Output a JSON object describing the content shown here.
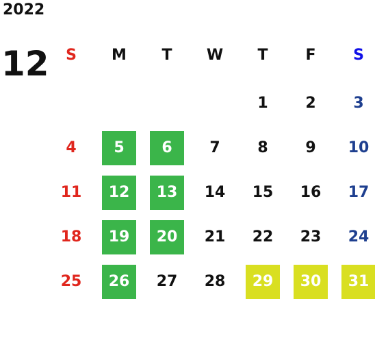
{
  "colors": {
    "sunday": "#e0261d",
    "saturday": "#1e3f8f",
    "saturday_header": "#1010e8",
    "weekday": "#111111",
    "green_bg": "#3bb54a",
    "yellow_bg": "#d9df21",
    "highlight_text": "#ffffff"
  },
  "calendar": {
    "year": "2022",
    "month": "12",
    "weekdays": [
      "S",
      "M",
      "T",
      "W",
      "T",
      "F",
      "S"
    ],
    "weeks": [
      [
        null,
        null,
        null,
        null,
        {
          "day": "1"
        },
        {
          "day": "2"
        },
        {
          "day": "3"
        }
      ],
      [
        {
          "day": "4"
        },
        {
          "day": "5",
          "hl": "green"
        },
        {
          "day": "6",
          "hl": "green"
        },
        {
          "day": "7"
        },
        {
          "day": "8"
        },
        {
          "day": "9"
        },
        {
          "day": "10"
        }
      ],
      [
        {
          "day": "11"
        },
        {
          "day": "12",
          "hl": "green"
        },
        {
          "day": "13",
          "hl": "green"
        },
        {
          "day": "14"
        },
        {
          "day": "15"
        },
        {
          "day": "16"
        },
        {
          "day": "17"
        }
      ],
      [
        {
          "day": "18"
        },
        {
          "day": "19",
          "hl": "green"
        },
        {
          "day": "20",
          "hl": "green"
        },
        {
          "day": "21"
        },
        {
          "day": "22"
        },
        {
          "day": "23"
        },
        {
          "day": "24"
        }
      ],
      [
        {
          "day": "25"
        },
        {
          "day": "26",
          "hl": "green"
        },
        {
          "day": "27"
        },
        {
          "day": "28"
        },
        {
          "day": "29",
          "hl": "yellow"
        },
        {
          "day": "30",
          "hl": "yellow"
        },
        {
          "day": "31",
          "hl": "yellow"
        }
      ]
    ]
  }
}
